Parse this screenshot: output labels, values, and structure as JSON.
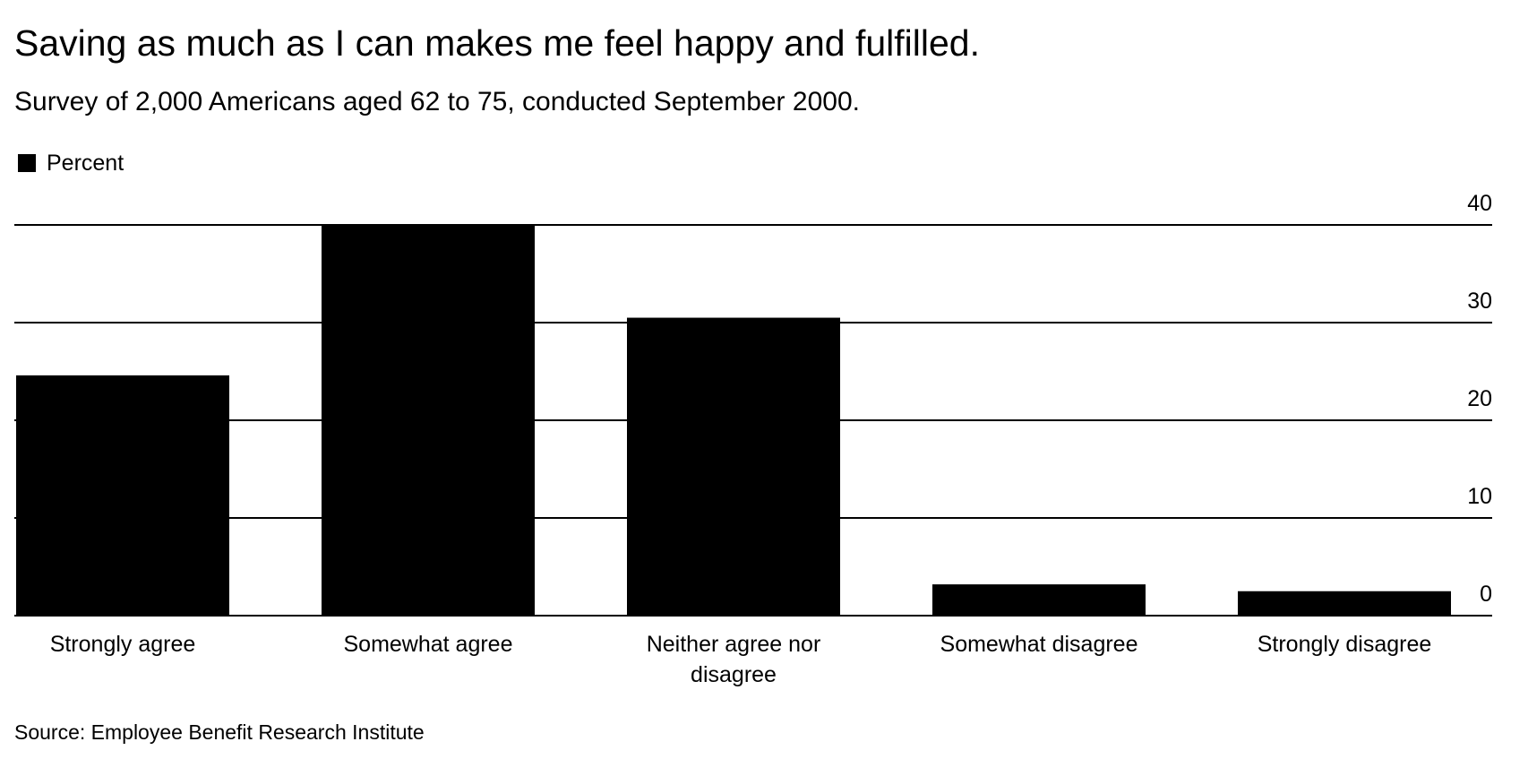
{
  "chart_data": {
    "type": "bar",
    "title": "Saving as much as I can makes me feel happy and fulfilled.",
    "subtitle": "Survey of 2,000 Americans aged 62 to 75, conducted September 2000.",
    "legend": [
      "Percent"
    ],
    "legend_position": "top-left",
    "categories": [
      "Strongly agree",
      "Somewhat agree",
      "Neither agree nor disagree",
      "Somewhat disagree",
      "Strongly disagree"
    ],
    "category_lines": [
      [
        "Strongly agree"
      ],
      [
        "Somewhat agree"
      ],
      [
        "Neither agree nor",
        "disagree"
      ],
      [
        "Somewhat disagree"
      ],
      [
        "Strongly disagree"
      ]
    ],
    "series": [
      {
        "name": "Percent",
        "values": [
          24.6,
          40.0,
          30.5,
          3.2,
          2.5
        ]
      }
    ],
    "ylim": [
      0,
      40
    ],
    "yticks": [
      0,
      10,
      20,
      30,
      40
    ],
    "y_axis_side": "right",
    "grid": true,
    "source": "Source: Employee Benefit Research Institute",
    "colors": {
      "bar": "#000000",
      "grid": "#000000",
      "background": "#ffffff"
    }
  }
}
